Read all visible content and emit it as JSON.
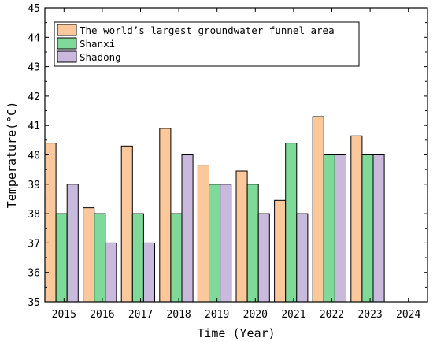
{
  "chart_data": {
    "type": "bar",
    "xlabel": "Time (Year)",
    "ylabel": "Temperature(°C)",
    "ylim": [
      35,
      45
    ],
    "yticks": [
      "35",
      "36",
      "37",
      "38",
      "39",
      "40",
      "41",
      "42",
      "43",
      "44",
      "45"
    ],
    "xticks": [
      "2015",
      "2016",
      "2017",
      "2018",
      "2019",
      "2020",
      "2021",
      "2022",
      "2023",
      "2024"
    ],
    "categories": [
      "2015",
      "2016",
      "2017",
      "2018",
      "2019",
      "2020",
      "2021",
      "2022",
      "2023"
    ],
    "grid": false,
    "legend_position": "top-left",
    "series": [
      {
        "name": "The world’s largest groundwater funnel area",
        "color": "#fbc89b",
        "values": [
          40.4,
          38.2,
          40.3,
          40.9,
          39.65,
          39.45,
          38.45,
          41.3,
          40.65
        ]
      },
      {
        "name": "Shanxi",
        "color": "#7fd998",
        "values": [
          38.0,
          38.0,
          38.0,
          38.0,
          39.0,
          39.0,
          40.4,
          40.0,
          40.0
        ]
      },
      {
        "name": "Shadong",
        "color": "#c9b9dd",
        "values": [
          39.0,
          37.0,
          37.0,
          40.0,
          39.0,
          38.0,
          38.0,
          40.0,
          40.0
        ]
      }
    ]
  }
}
